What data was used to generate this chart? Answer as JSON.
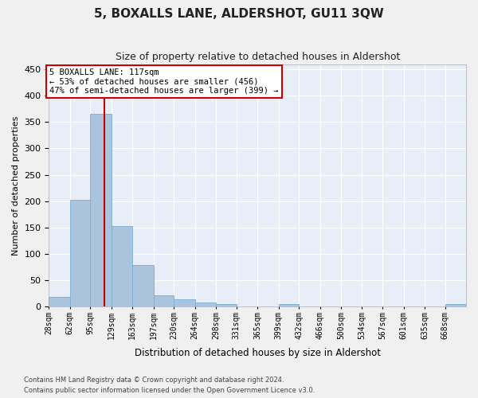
{
  "title": "5, BOXALLS LANE, ALDERSHOT, GU11 3QW",
  "subtitle": "Size of property relative to detached houses in Aldershot",
  "xlabel": "Distribution of detached houses by size in Aldershot",
  "ylabel": "Number of detached properties",
  "footer_line1": "Contains HM Land Registry data © Crown copyright and database right 2024.",
  "footer_line2": "Contains public sector information licensed under the Open Government Licence v3.0.",
  "bar_edges": [
    28,
    62,
    95,
    129,
    163,
    197,
    230,
    264,
    298,
    331,
    365,
    399,
    432,
    466,
    500,
    534,
    567,
    601,
    635,
    668,
    702
  ],
  "bar_heights": [
    18,
    202,
    365,
    153,
    79,
    22,
    14,
    7,
    5,
    0,
    0,
    4,
    0,
    0,
    0,
    0,
    0,
    0,
    0,
    4
  ],
  "bar_color": "#aac4de",
  "bar_edge_color": "#7aaed0",
  "property_size": 117,
  "property_line_color": "#cc0000",
  "annotation_text_line1": "5 BOXALLS LANE: 117sqm",
  "annotation_text_line2": "← 53% of detached houses are smaller (456)",
  "annotation_text_line3": "47% of semi-detached houses are larger (399) →",
  "annotation_box_color": "#cc0000",
  "ylim": [
    0,
    460
  ],
  "background_color": "#e8eef8",
  "grid_color": "#ffffff",
  "fig_background": "#f0f0f0",
  "tick_label_fontsize": 7,
  "title_fontsize": 11,
  "subtitle_fontsize": 9
}
